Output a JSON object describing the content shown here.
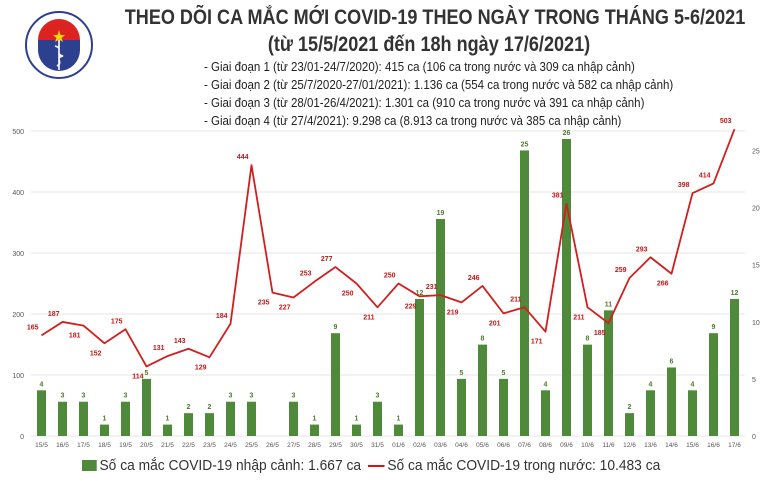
{
  "header": {
    "title": "THEO DÕI CA MẮC MỚI COVID-19 THEO NGÀY TRONG THÁNG 5-6/2021",
    "subtitle": "(từ 15/5/2021 đến 18h ngày 17/6/2021)",
    "logo_text": "BỘ Y TẾ · MINISTRY OF HEALTH",
    "phases": [
      "- Giai đoạn 1 (từ 23/01-24/7/2020): 415 ca (106 ca trong nước và 309 ca nhập cảnh)",
      "- Giai đoạn 2 (từ 25/7/2020-27/01/2021): 1.136 ca (554 ca trong nước và 582 ca nhập cảnh)",
      "- Giai đoạn 3 (từ 28/01-26/4/2021): 1.301 ca (910 ca trong nước và 391 ca nhập cảnh)",
      "- Giai đoạn 4 (từ 27/4/2021): 9.298 ca (8.913 ca trong nước và 385 ca nhập cảnh)"
    ]
  },
  "chart_data": {
    "type": "bar+line",
    "categories": [
      "15/5",
      "16/5",
      "17/5",
      "18/5",
      "19/5",
      "20/5",
      "21/5",
      "22/5",
      "23/5",
      "24/5",
      "25/5",
      "26/5",
      "27/5",
      "28/5",
      "29/5",
      "30/5",
      "31/5",
      "01/6",
      "02/6",
      "03/6",
      "04/6",
      "05/6",
      "06/6",
      "07/6",
      "08/6",
      "09/6",
      "10/6",
      "11/6",
      "12/6",
      "13/6",
      "14/6",
      "15/6",
      "16/6",
      "17/6"
    ],
    "series": [
      {
        "name": "Số ca mắc COVID-19 nhập cảnh: 1.667 ca",
        "type": "bar",
        "axis": "right",
        "color": "#4e8a3a",
        "values": [
          4,
          3,
          3,
          1,
          3,
          5,
          1,
          2,
          2,
          3,
          3,
          0,
          3,
          1,
          9,
          1,
          3,
          1,
          12,
          19,
          5,
          8,
          5,
          25,
          4,
          26,
          8,
          11,
          2,
          4,
          6,
          4,
          9,
          12
        ]
      },
      {
        "name": "Số ca mắc COVID-19 trong nước: 10.483 ca",
        "type": "line",
        "axis": "left",
        "color": "#d11f1f",
        "values": [
          165,
          187,
          181,
          152,
          175,
          114,
          131,
          143,
          129,
          184,
          444,
          235,
          227,
          253,
          277,
          250,
          211,
          250,
          229,
          231,
          219,
          246,
          201,
          211,
          171,
          381,
          211,
          185,
          259,
          293,
          266,
          398,
          414,
          503
        ]
      }
    ],
    "y_left": {
      "ticks": [
        0,
        100,
        200,
        300,
        400,
        500
      ],
      "ylim": [
        0,
        500
      ]
    },
    "y_right": {
      "ticks": [
        0,
        5,
        10,
        15,
        20,
        25
      ],
      "ylim": [
        0,
        26.7
      ]
    },
    "grid": true,
    "legend": "bottom"
  }
}
